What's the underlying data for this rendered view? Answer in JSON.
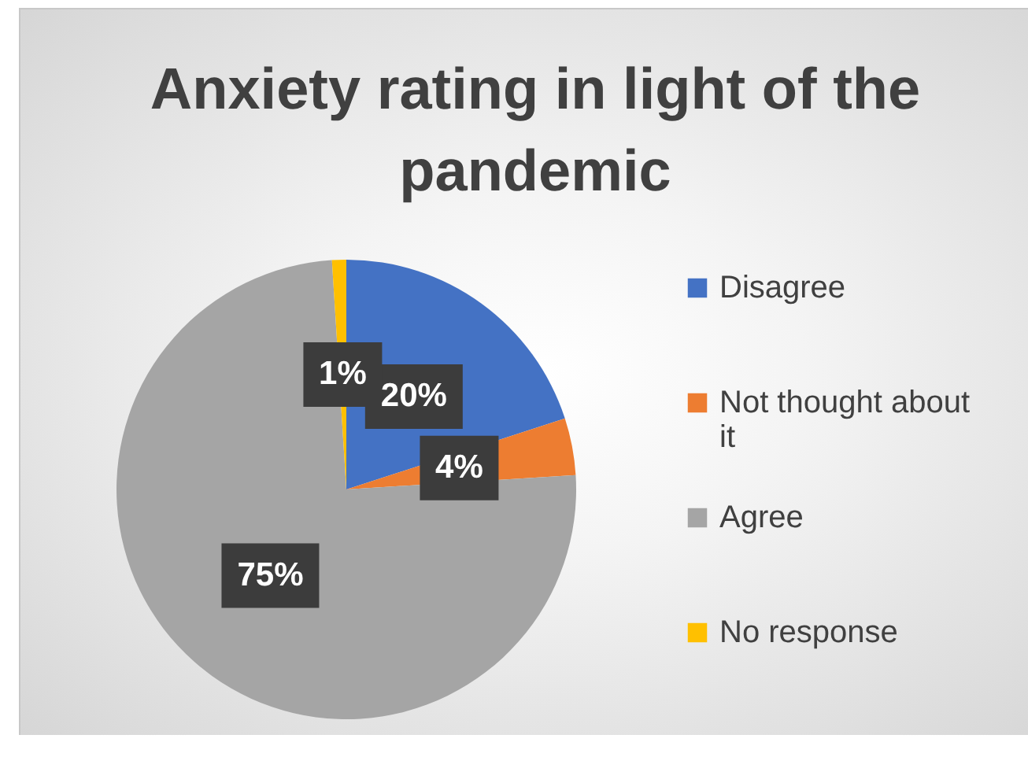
{
  "chart_data": {
    "type": "pie",
    "title": "Anxiety rating in light of the pandemic",
    "categories": [
      "Disagree",
      "Not thought about it",
      "Agree",
      "No response"
    ],
    "values": [
      20,
      4,
      75,
      1
    ],
    "colors": [
      "#4472c4",
      "#ed7d31",
      "#a5a5a5",
      "#ffc000"
    ],
    "value_labels": [
      "20%",
      "4%",
      "75%",
      "1%"
    ],
    "legend": "right"
  }
}
